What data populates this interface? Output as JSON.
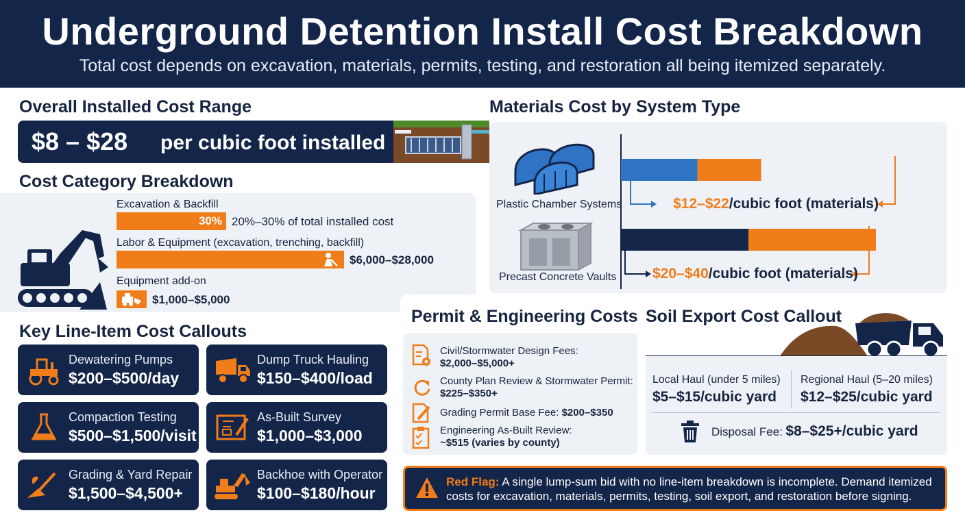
{
  "header": {
    "title": "Underground Detention Install Cost Breakdown",
    "subtitle": "Total cost depends on excavation, materials, permits, testing, and restoration all being itemized separately."
  },
  "overall": {
    "heading": "Overall Installed Cost Range",
    "range": "$8 – $28",
    "unit": "per cubic foot installed"
  },
  "categories": {
    "heading": "Cost Category Breakdown",
    "excavation": {
      "label": "Excavation & Backfill",
      "pct_label": "30%",
      "share": 0.3,
      "note": "20%–30% of total installed cost"
    },
    "labor": {
      "label": "Labor & Equipment (excavation, trenching, backfill)",
      "value": "$6,000–$28,000"
    },
    "addon": {
      "label": "Equipment add-on",
      "value": "$1,000–$5,000"
    }
  },
  "callouts": {
    "heading": "Key Line-Item Cost Callouts",
    "items": [
      {
        "title": "Dewatering Pumps",
        "value": "$200–$500/day",
        "icon": "tractor-icon"
      },
      {
        "title": "Dump Truck Hauling",
        "value": "$150–$400/load",
        "icon": "dump-truck-icon"
      },
      {
        "title": "Compaction Testing",
        "value": "$500–$1,500/visit",
        "icon": "flask-icon"
      },
      {
        "title": "As-Built Survey",
        "value": "$1,000–$3,000",
        "icon": "blueprint-icon"
      },
      {
        "title": "Grading & Yard Repair",
        "value": "$1,500–$4,500+",
        "icon": "shovel-icon"
      },
      {
        "title": "Backhoe with Operator",
        "value": "$100–$180/hour",
        "icon": "backhoe-icon"
      }
    ]
  },
  "materials": {
    "heading": "Materials Cost by System Type",
    "systems": [
      {
        "name": "Plastic Chamber Systems",
        "price_range": "$12–$22",
        "price_unit": "/cubic foot (materials)",
        "base_color": "#2f73c5",
        "range_color": "#f07c1a"
      },
      {
        "name": "Precast Concrete Vaults",
        "price_range": "$20–$40",
        "price_unit": "/cubic foot (materials)",
        "base_color": "#14254a",
        "range_color": "#f07c1a"
      }
    ]
  },
  "permits": {
    "heading": "Permit & Engineering Costs",
    "items": [
      {
        "label": "Civil/Stormwater Design Fees:",
        "value": "$2,000–$5,000+",
        "icon": "document-gear-icon"
      },
      {
        "label": "County Plan Review & Stormwater Permit:",
        "value": "$225–$350+",
        "icon": "refresh-icon"
      },
      {
        "label": "Grading Permit Base Fee:",
        "value": "$200–$350",
        "icon": "edit-document-icon"
      },
      {
        "label": "Engineering As-Built Review:",
        "value": "~$515 (varies by county)",
        "icon": "checklist-icon"
      }
    ]
  },
  "soil": {
    "heading": "Soil Export Cost Callout",
    "local": {
      "label": "Local Haul (under 5 miles)",
      "value": "$5–$15/cubic yard"
    },
    "regional": {
      "label": "Regional Haul (5–20 miles)",
      "value": "$12–$25/cubic yard"
    },
    "disposal": {
      "label": "Disposal Fee:",
      "value": "$8–$25+/cubic yard"
    }
  },
  "red_flag": {
    "label": "Red Flag:",
    "text": "A single lump-sum bid with no line-item breakdown is incomplete. Demand itemized costs for excavation, materials, permits, testing, soil export, and restoration before signing."
  },
  "colors": {
    "navy": "#14254a",
    "orange": "#f07c1a",
    "blue": "#2f73c5",
    "panel": "#eef1f5"
  }
}
